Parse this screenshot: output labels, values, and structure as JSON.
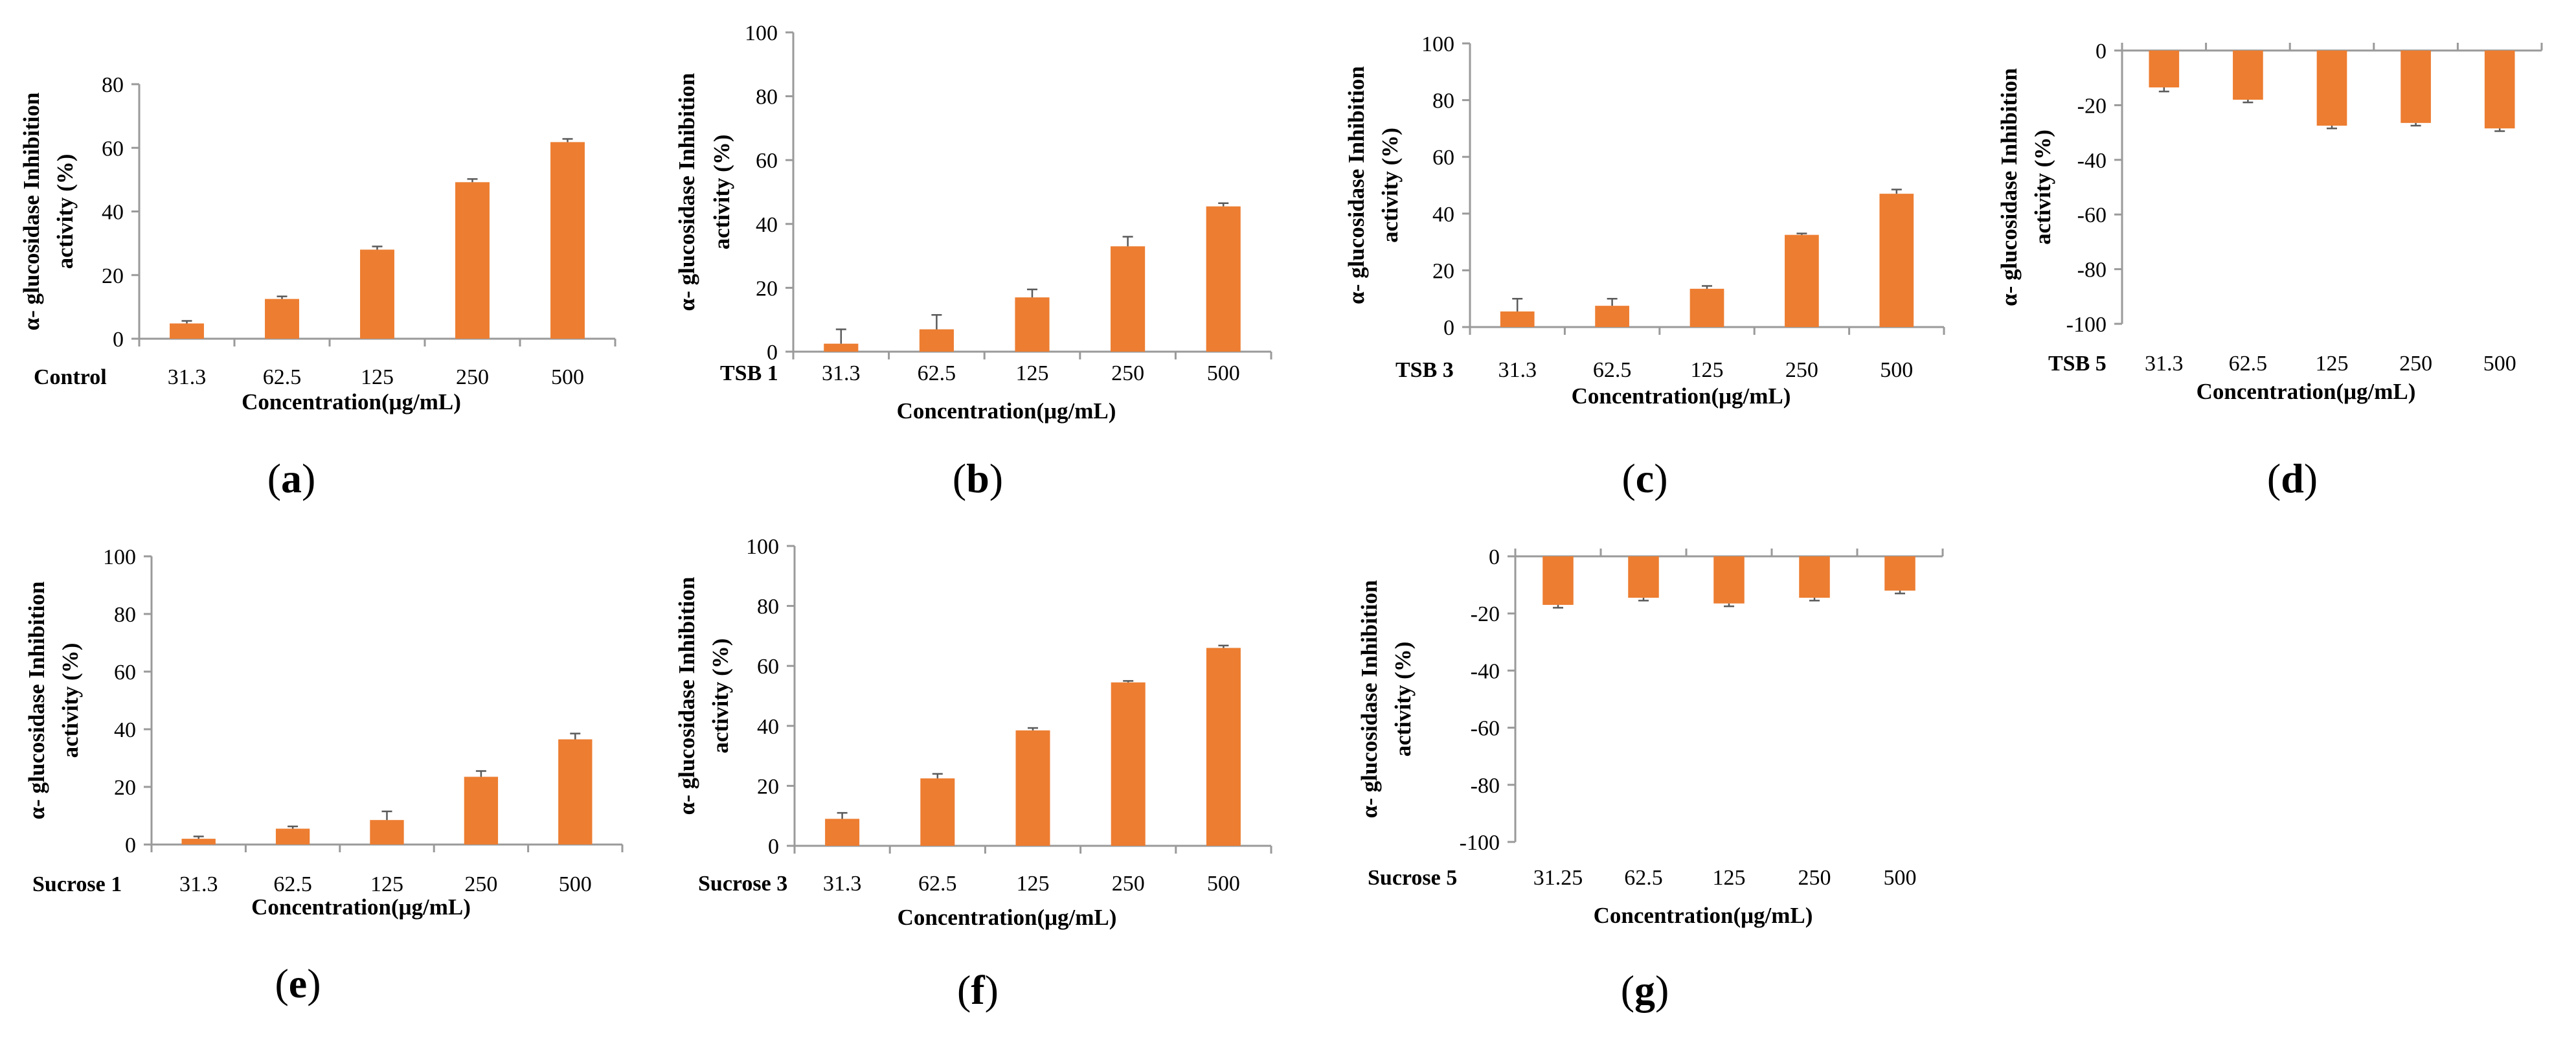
{
  "figure": {
    "bar_color": "#ED7D31",
    "axis_color": "#9A9A9A",
    "error_color": "#5A5A5A"
  },
  "chart_data": [
    {
      "type": "bar",
      "panel": "a",
      "condition": "Control",
      "categories": [
        "31.3",
        "62.5",
        "125",
        "250",
        "500"
      ],
      "values": [
        4.8,
        12.5,
        28,
        49.2,
        61.8
      ],
      "errors": [
        0.8,
        0.8,
        1,
        1,
        1
      ],
      "ylim": [
        0,
        80
      ],
      "yticks": [
        0,
        20,
        40,
        60,
        80
      ],
      "ylabel_1": "α- glucosidase Inhibition",
      "ylabel_2": "activity  (%)",
      "xlabel": "Concentration(μg/mL)"
    },
    {
      "type": "bar",
      "panel": "b",
      "condition": "TSB 1",
      "categories": [
        "31.3",
        "62.5",
        "125",
        "250",
        "500"
      ],
      "values": [
        2.5,
        7,
        17,
        33,
        45.5
      ],
      "errors": [
        4.5,
        4.5,
        2.5,
        3,
        1
      ],
      "ylim": [
        0,
        100
      ],
      "yticks": [
        0,
        20,
        40,
        60,
        80,
        100
      ],
      "ylabel_1": "α- glucosidase Inhibition",
      "ylabel_2": "activity (%)",
      "xlabel": "Concentration(μg/mL)"
    },
    {
      "type": "bar",
      "panel": "c",
      "condition": "TSB 3",
      "categories": [
        "31.3",
        "62.5",
        "125",
        "250",
        "500"
      ],
      "values": [
        5.5,
        7.5,
        13.5,
        32.5,
        47
      ],
      "errors": [
        4.5,
        2.5,
        1,
        0.5,
        1.5
      ],
      "ylim": [
        0,
        100
      ],
      "yticks": [
        0,
        20,
        40,
        60,
        80,
        100
      ],
      "ylabel_1": "α- glucosidase Inhibition",
      "ylabel_2": "activity (%)",
      "xlabel": "Concentration(μg/mL)"
    },
    {
      "type": "bar",
      "panel": "d",
      "condition": "TSB 5",
      "categories": [
        "31.3",
        "62.5",
        "125",
        "250",
        "500"
      ],
      "values": [
        -13.5,
        -18,
        -27.5,
        -26.5,
        -28.5
      ],
      "errors": [
        1.5,
        1,
        1,
        1,
        1
      ],
      "ylim": [
        -100,
        0
      ],
      "yticks": [
        0,
        -20,
        -40,
        -60,
        -80,
        -100
      ],
      "ylabel_1": "α- glucosidase Inhibition",
      "ylabel_2": "activity (%)",
      "xlabel": "Concentration(μg/mL)"
    },
    {
      "type": "bar",
      "panel": "e",
      "condition": "Sucrose 1",
      "categories": [
        "31.3",
        "62.5",
        "125",
        "250",
        "500"
      ],
      "values": [
        2,
        5.5,
        8.5,
        23.5,
        36.5
      ],
      "errors": [
        0.8,
        0.8,
        3,
        2,
        2
      ],
      "ylim": [
        0,
        100
      ],
      "yticks": [
        0,
        20,
        40,
        60,
        80,
        100
      ],
      "ylabel_1": "α- glucosidase Inhibition",
      "ylabel_2": "activity (%)",
      "xlabel": "Concentration(μg/mL)"
    },
    {
      "type": "bar",
      "panel": "f",
      "condition": "Sucrose 3",
      "categories": [
        "31.3",
        "62.5",
        "125",
        "250",
        "500"
      ],
      "values": [
        9,
        22.5,
        38.5,
        54.5,
        66
      ],
      "errors": [
        2,
        1.5,
        0.8,
        0.5,
        0.8
      ],
      "ylim": [
        0,
        100
      ],
      "yticks": [
        0,
        20,
        40,
        60,
        80,
        100
      ],
      "ylabel_1": "α- glucosidase Inhibition",
      "ylabel_2": "activity (%)",
      "xlabel": "Concentration(μg/mL)"
    },
    {
      "type": "bar",
      "panel": "g",
      "condition": "Sucrose 5",
      "categories": [
        "31.25",
        "62.5",
        "125",
        "250",
        "500"
      ],
      "values": [
        -17,
        -14.5,
        -16.5,
        -14.5,
        -12
      ],
      "errors": [
        1,
        1,
        1,
        1,
        1
      ],
      "ylim": [
        -100,
        0
      ],
      "yticks": [
        0,
        -20,
        -40,
        -60,
        -80,
        -100
      ],
      "ylabel_1": "α- glucosidase Inhibition",
      "ylabel_2": "activity (%)",
      "xlabel": "Concentration(μg/mL)"
    }
  ]
}
